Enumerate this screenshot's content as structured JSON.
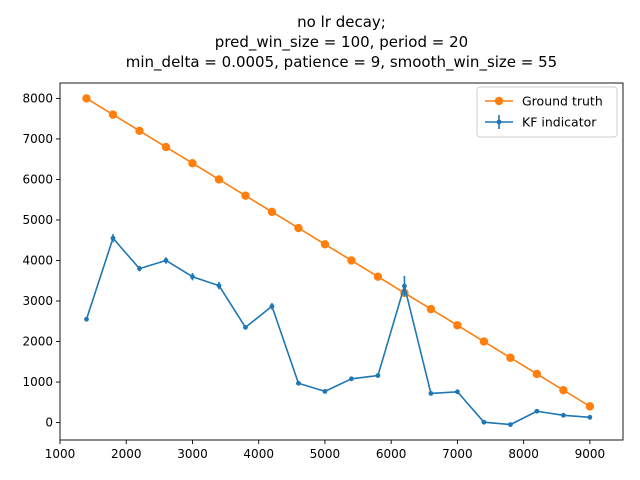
{
  "chart_data": {
    "type": "line",
    "title_lines": [
      "no lr decay;",
      "pred_win_size = 100, period = 20",
      "min_delta = 0.0005, patience = 9, smooth_win_size = 55"
    ],
    "xlabel": "",
    "ylabel": "",
    "xlim": [
      1000,
      9500
    ],
    "ylim": [
      -430,
      8380
    ],
    "xticks": [
      1000,
      2000,
      3000,
      4000,
      5000,
      6000,
      7000,
      8000,
      9000
    ],
    "yticks": [
      0,
      1000,
      2000,
      3000,
      4000,
      5000,
      6000,
      7000,
      8000
    ],
    "grid": false,
    "legend_position": "top-right",
    "series": [
      {
        "name": "Ground truth",
        "color": "#ff7f0e",
        "marker": "circle",
        "x": [
          1400,
          1800,
          2200,
          2600,
          3000,
          3400,
          3800,
          4200,
          4600,
          5000,
          5400,
          5800,
          6200,
          6600,
          7000,
          7400,
          7800,
          8200,
          8600,
          9000
        ],
        "y": [
          8000,
          7600,
          7200,
          6800,
          6400,
          6000,
          5600,
          5200,
          4800,
          4400,
          4000,
          3600,
          3200,
          2800,
          2400,
          2000,
          1600,
          1200,
          800,
          400
        ]
      },
      {
        "name": "KF indicator",
        "color": "#1f77b4",
        "marker": "errorbar",
        "x": [
          1400,
          1800,
          2200,
          2600,
          3000,
          3400,
          3800,
          4200,
          4600,
          5000,
          5400,
          5800,
          6200,
          6600,
          7000,
          7400,
          7800,
          8200,
          8600,
          9000
        ],
        "y": [
          2550,
          4550,
          3800,
          4000,
          3600,
          3380,
          2350,
          2870,
          970,
          770,
          1080,
          1160,
          3370,
          720,
          760,
          10,
          -50,
          280,
          180,
          130
        ],
        "yerr": [
          30,
          100,
          70,
          80,
          90,
          90,
          40,
          80,
          30,
          30,
          30,
          30,
          250,
          30,
          30,
          20,
          40,
          30,
          20,
          20
        ]
      }
    ]
  }
}
